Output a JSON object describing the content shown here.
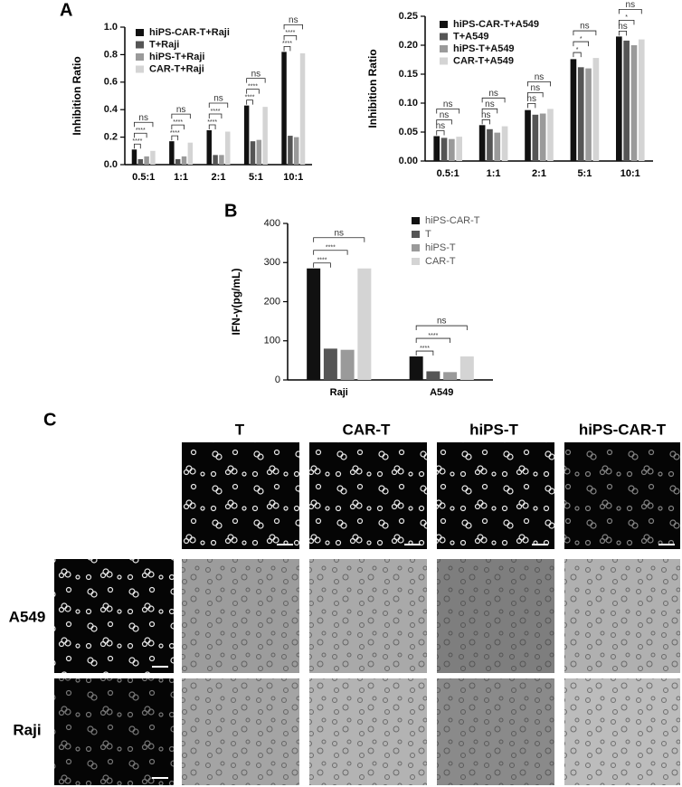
{
  "panels": {
    "a": "A",
    "b": "B",
    "c": "C"
  },
  "chart_data": [
    {
      "type": "bar",
      "ylabel": "Inhibition Ratio",
      "categories": [
        "0.5:1",
        "1:1",
        "2:1",
        "5:1",
        "10:1"
      ],
      "series": [
        {
          "name": "hiPS-CAR-T+Raji",
          "color": "#111111",
          "values": [
            0.11,
            0.17,
            0.25,
            0.43,
            0.82
          ]
        },
        {
          "name": "T+Raji",
          "color": "#555555",
          "values": [
            0.04,
            0.04,
            0.07,
            0.17,
            0.21
          ]
        },
        {
          "name": "hiPS-T+Raji",
          "color": "#9a9a9a",
          "values": [
            0.06,
            0.06,
            0.07,
            0.18,
            0.2
          ]
        },
        {
          "name": "CAR-T+Raji",
          "color": "#d4d4d4",
          "values": [
            0.1,
            0.16,
            0.24,
            0.42,
            0.81
          ]
        }
      ],
      "significance": [
        [
          "****",
          "****",
          "ns"
        ],
        [
          "****",
          "****",
          "ns"
        ],
        [
          "****",
          "****",
          "ns"
        ],
        [
          "****",
          "****",
          "ns"
        ],
        [
          "****",
          "****",
          "ns"
        ]
      ],
      "ylim": [
        0,
        1
      ],
      "yticks": [
        {
          "value": 0,
          "label": "0.0"
        },
        0.2,
        0.4,
        0.6,
        0.8,
        {
          "value": 1,
          "label": "1.0"
        }
      ]
    },
    {
      "type": "bar",
      "ylabel": "Inhibition Ratio",
      "categories": [
        "0.5:1",
        "1:1",
        "2:1",
        "5:1",
        "10:1"
      ],
      "series": [
        {
          "name": "hiPS-CAR-T+A549",
          "color": "#111111",
          "values": [
            0.043,
            0.062,
            0.088,
            0.176,
            0.215
          ]
        },
        {
          "name": "T+A549",
          "color": "#555555",
          "values": [
            0.04,
            0.055,
            0.08,
            0.162,
            0.208
          ]
        },
        {
          "name": "hiPS-T+A549",
          "color": "#9a9a9a",
          "values": [
            0.038,
            0.049,
            0.082,
            0.16,
            0.2
          ]
        },
        {
          "name": "CAR-T+A549",
          "color": "#d4d4d4",
          "values": [
            0.042,
            0.06,
            0.09,
            0.178,
            0.21
          ]
        }
      ],
      "significance": [
        [
          "ns",
          "ns",
          "ns"
        ],
        [
          "ns",
          "ns",
          "ns"
        ],
        [
          "ns",
          "ns",
          "ns"
        ],
        [
          "*",
          "*",
          "ns"
        ],
        [
          "ns",
          "*",
          "ns"
        ]
      ],
      "ylim": [
        0,
        0.25
      ],
      "yticks": [
        {
          "value": 0,
          "label": "0.00"
        },
        {
          "value": 0.05,
          "label": "0.05"
        },
        {
          "value": 0.1,
          "label": "0.10"
        },
        {
          "value": 0.15,
          "label": "0.15"
        },
        {
          "value": 0.2,
          "label": "0.20"
        },
        {
          "value": 0.25,
          "label": "0.25"
        }
      ]
    },
    {
      "type": "bar",
      "ylabel": "IFN-γ(pg/mL)",
      "categories": [
        "Raji",
        "A549"
      ],
      "series": [
        {
          "name": "hiPS-CAR-T",
          "color": "#111111",
          "values": [
            285,
            60
          ]
        },
        {
          "name": "T",
          "color": "#555555",
          "values": [
            80,
            22
          ]
        },
        {
          "name": "hiPS-T",
          "color": "#9a9a9a",
          "values": [
            77,
            20
          ]
        },
        {
          "name": "CAR-T",
          "color": "#d4d4d4",
          "values": [
            285,
            60
          ]
        }
      ],
      "significance": [
        [
          "****",
          "****",
          "ns"
        ],
        [
          "****",
          "****",
          "ns"
        ]
      ],
      "ylim": [
        0,
        400
      ],
      "yticks": [
        0,
        100,
        200,
        300,
        400
      ]
    }
  ],
  "image_grid": {
    "columns": [
      "T",
      "CAR-T",
      "hiPS-T",
      "hiPS-CAR-T"
    ],
    "rows": [
      "A549",
      "Raji"
    ]
  }
}
